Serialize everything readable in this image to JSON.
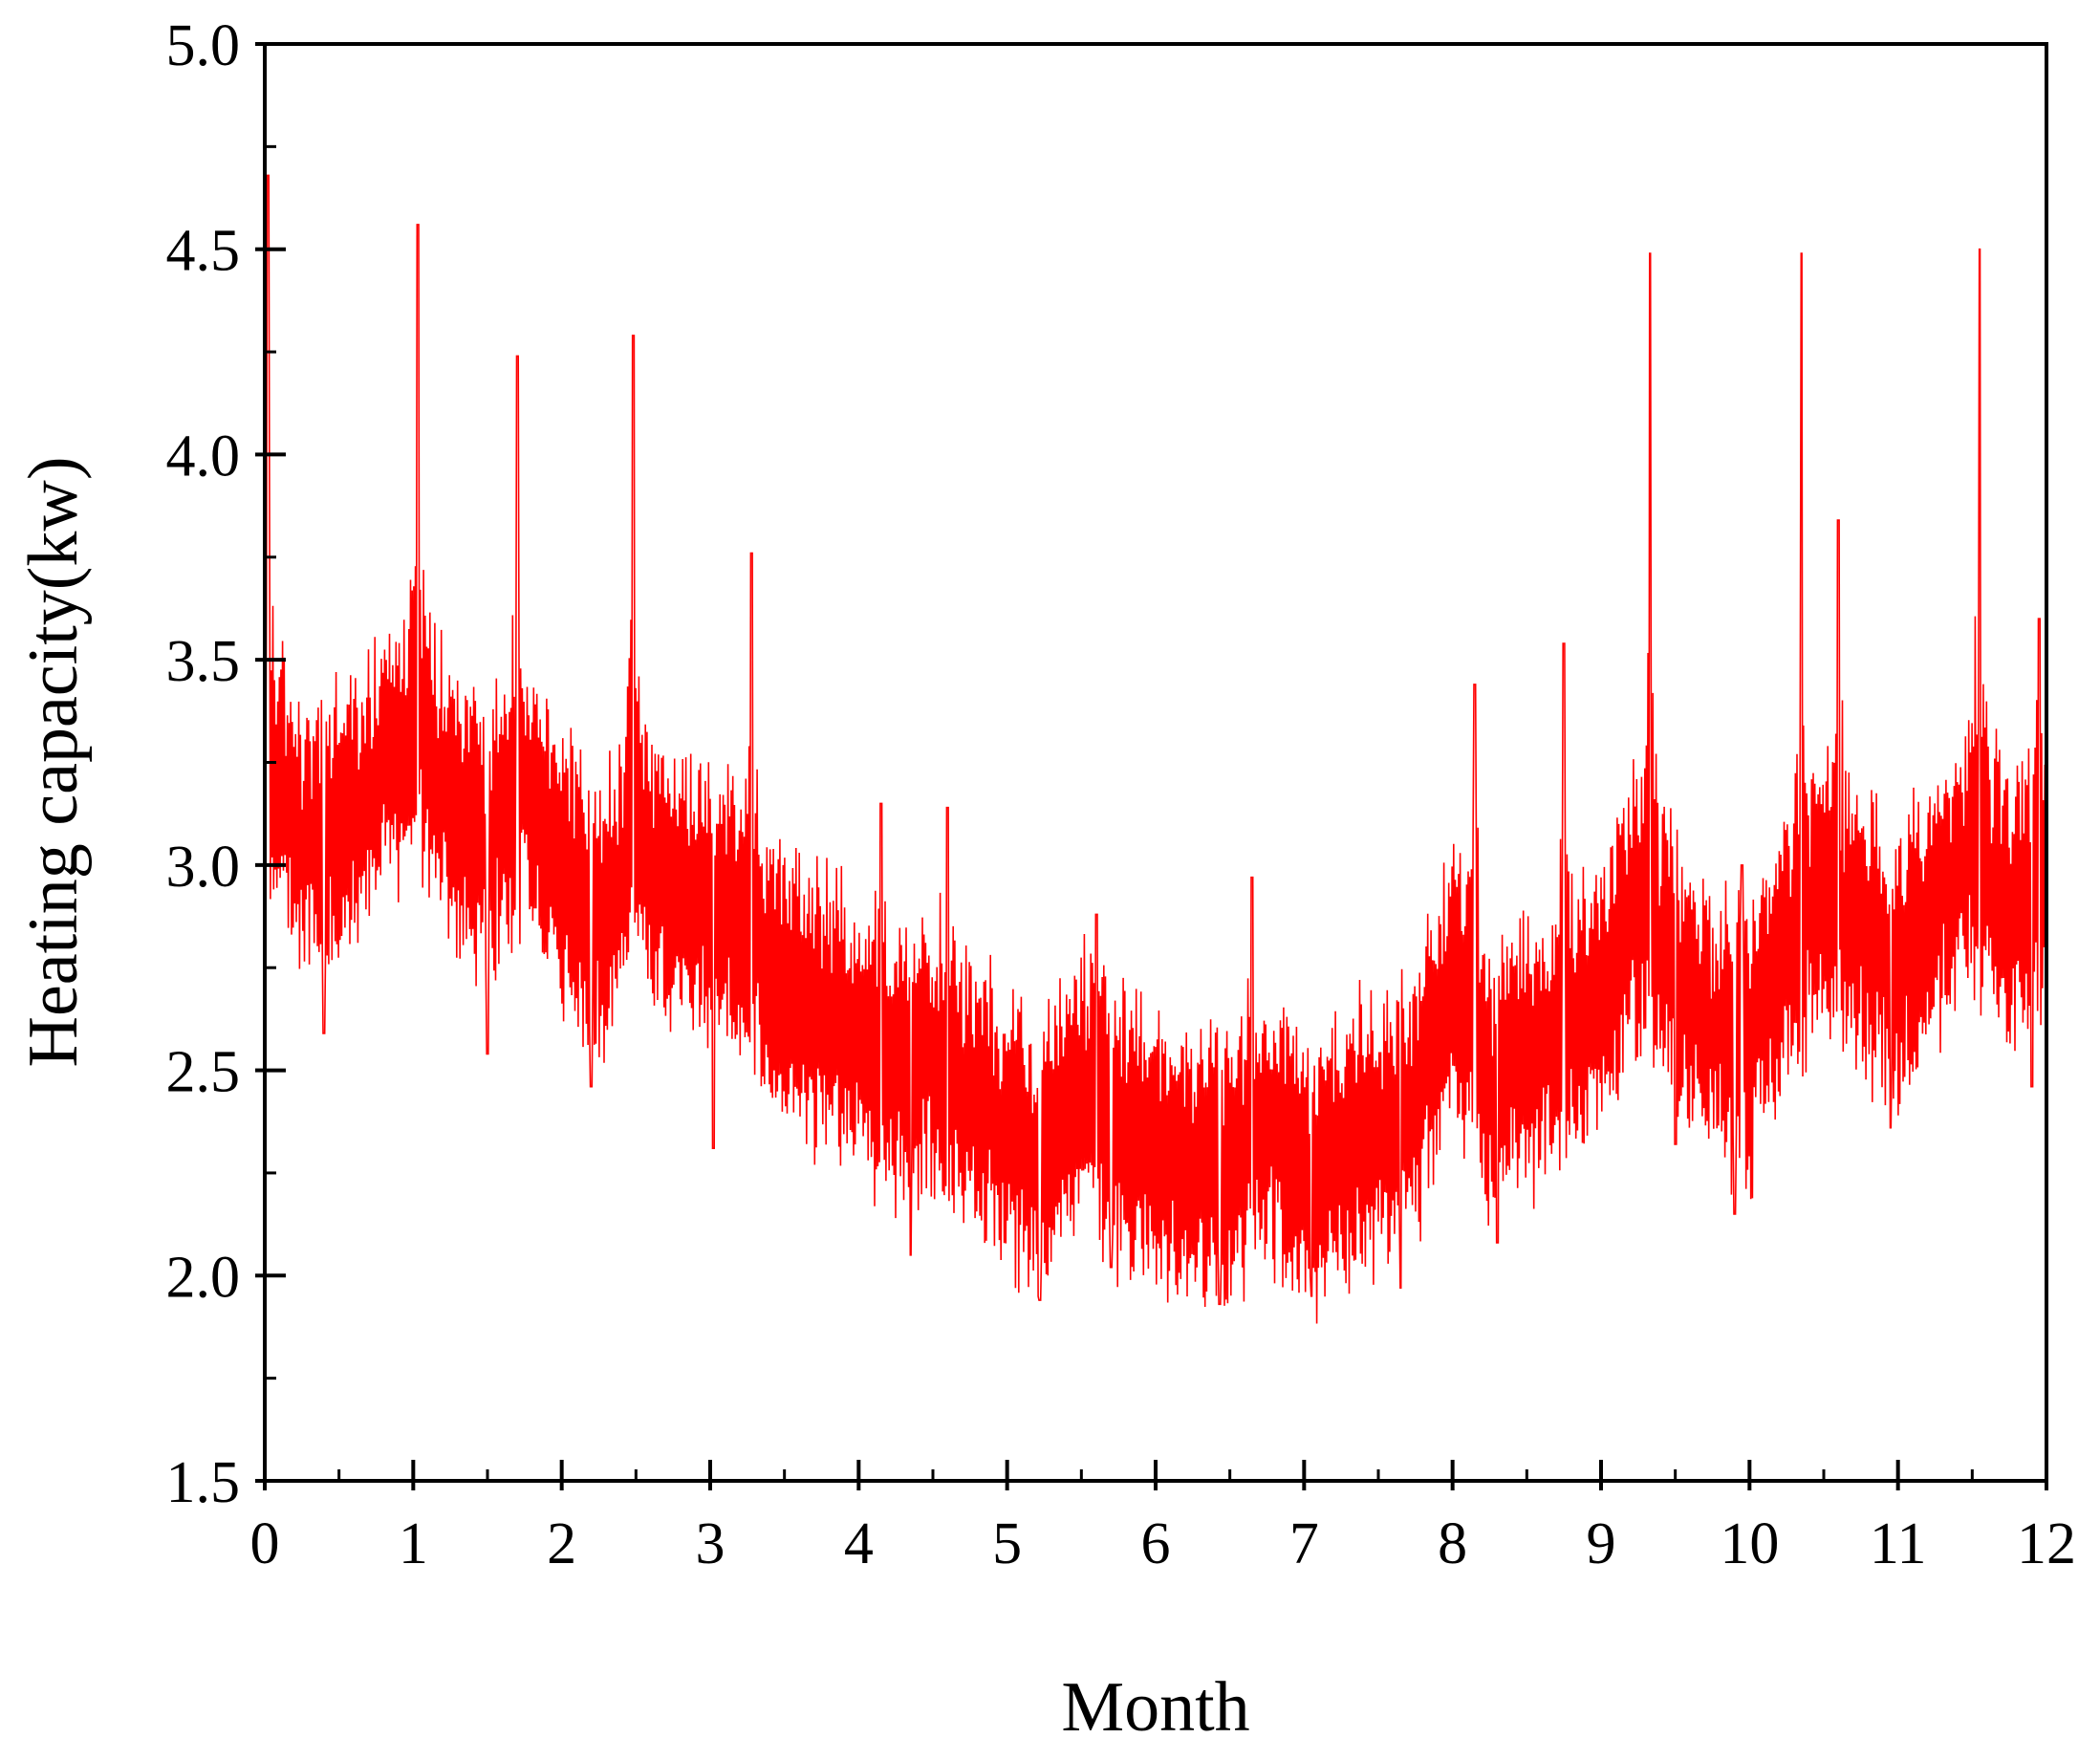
{
  "chart_data": {
    "type": "line",
    "title": "",
    "xlabel": "Month",
    "ylabel": "Heating capacity(kw)",
    "xlim": [
      0,
      12
    ],
    "ylim": [
      1.5,
      5.0
    ],
    "x_ticks": [
      "0",
      "1",
      "2",
      "3",
      "4",
      "5",
      "6",
      "7",
      "8",
      "9",
      "10",
      "11",
      "12"
    ],
    "y_ticks": [
      "1.5",
      "2.0",
      "2.5",
      "3.0",
      "3.5",
      "4.0",
      "4.5",
      "5.0"
    ],
    "grid": false,
    "legend": "none",
    "line_color": "#ff0000",
    "x": [
      0.0,
      0.25,
      0.5,
      0.75,
      1.0,
      1.25,
      1.5,
      1.75,
      2.0,
      2.25,
      2.5,
      2.75,
      3.0,
      3.25,
      3.5,
      3.75,
      4.0,
      4.25,
      4.5,
      4.75,
      5.0,
      5.25,
      5.5,
      5.75,
      6.0,
      6.25,
      6.5,
      6.75,
      7.0,
      7.25,
      7.5,
      7.75,
      8.0,
      8.25,
      8.5,
      8.75,
      9.0,
      9.25,
      9.5,
      9.75,
      10.0,
      10.25,
      10.5,
      10.75,
      11.0,
      11.25,
      11.5,
      11.75,
      12.0
    ],
    "series": [
      {
        "values": [
          3.3,
          3.05,
          3.1,
          3.2,
          3.35,
          3.15,
          3.05,
          3.2,
          3.0,
          2.85,
          3.05,
          2.95,
          2.9,
          2.85,
          2.7,
          2.65,
          2.6,
          2.5,
          2.55,
          2.45,
          2.35,
          2.3,
          2.45,
          2.35,
          2.3,
          2.25,
          2.3,
          2.35,
          2.25,
          2.3,
          2.35,
          2.4,
          2.75,
          2.45,
          2.55,
          2.6,
          2.7,
          2.9,
          2.75,
          2.6,
          2.55,
          2.8,
          2.95,
          2.85,
          2.75,
          2.9,
          3.05,
          2.9,
          2.95
        ],
        "peaks_approx": [
          [
            0.02,
            4.68
          ],
          [
            1.03,
            4.56
          ],
          [
            1.7,
            4.24
          ],
          [
            2.48,
            4.29
          ],
          [
            3.28,
            3.76
          ],
          [
            4.15,
            3.15
          ],
          [
            4.6,
            3.14
          ],
          [
            5.6,
            2.88
          ],
          [
            6.65,
            2.97
          ],
          [
            7.65,
            2.95
          ],
          [
            8.15,
            3.44
          ],
          [
            8.75,
            3.54
          ],
          [
            9.33,
            4.49
          ],
          [
            9.95,
            3.0
          ],
          [
            10.35,
            4.49
          ],
          [
            10.6,
            3.84
          ],
          [
            11.55,
            4.5
          ],
          [
            11.95,
            3.6
          ]
        ],
        "troughs_approx": [
          [
            0.4,
            2.59
          ],
          [
            1.5,
            2.54
          ],
          [
            2.2,
            2.46
          ],
          [
            3.02,
            2.31
          ],
          [
            4.35,
            2.05
          ],
          [
            5.22,
            1.94
          ],
          [
            5.7,
            2.02
          ],
          [
            6.43,
            1.93
          ],
          [
            7.05,
            1.95
          ],
          [
            7.65,
            1.97
          ],
          [
            8.3,
            2.08
          ],
          [
            9.5,
            2.32
          ],
          [
            9.9,
            2.15
          ],
          [
            10.95,
            2.36
          ],
          [
            11.9,
            2.46
          ]
        ]
      }
    ]
  }
}
